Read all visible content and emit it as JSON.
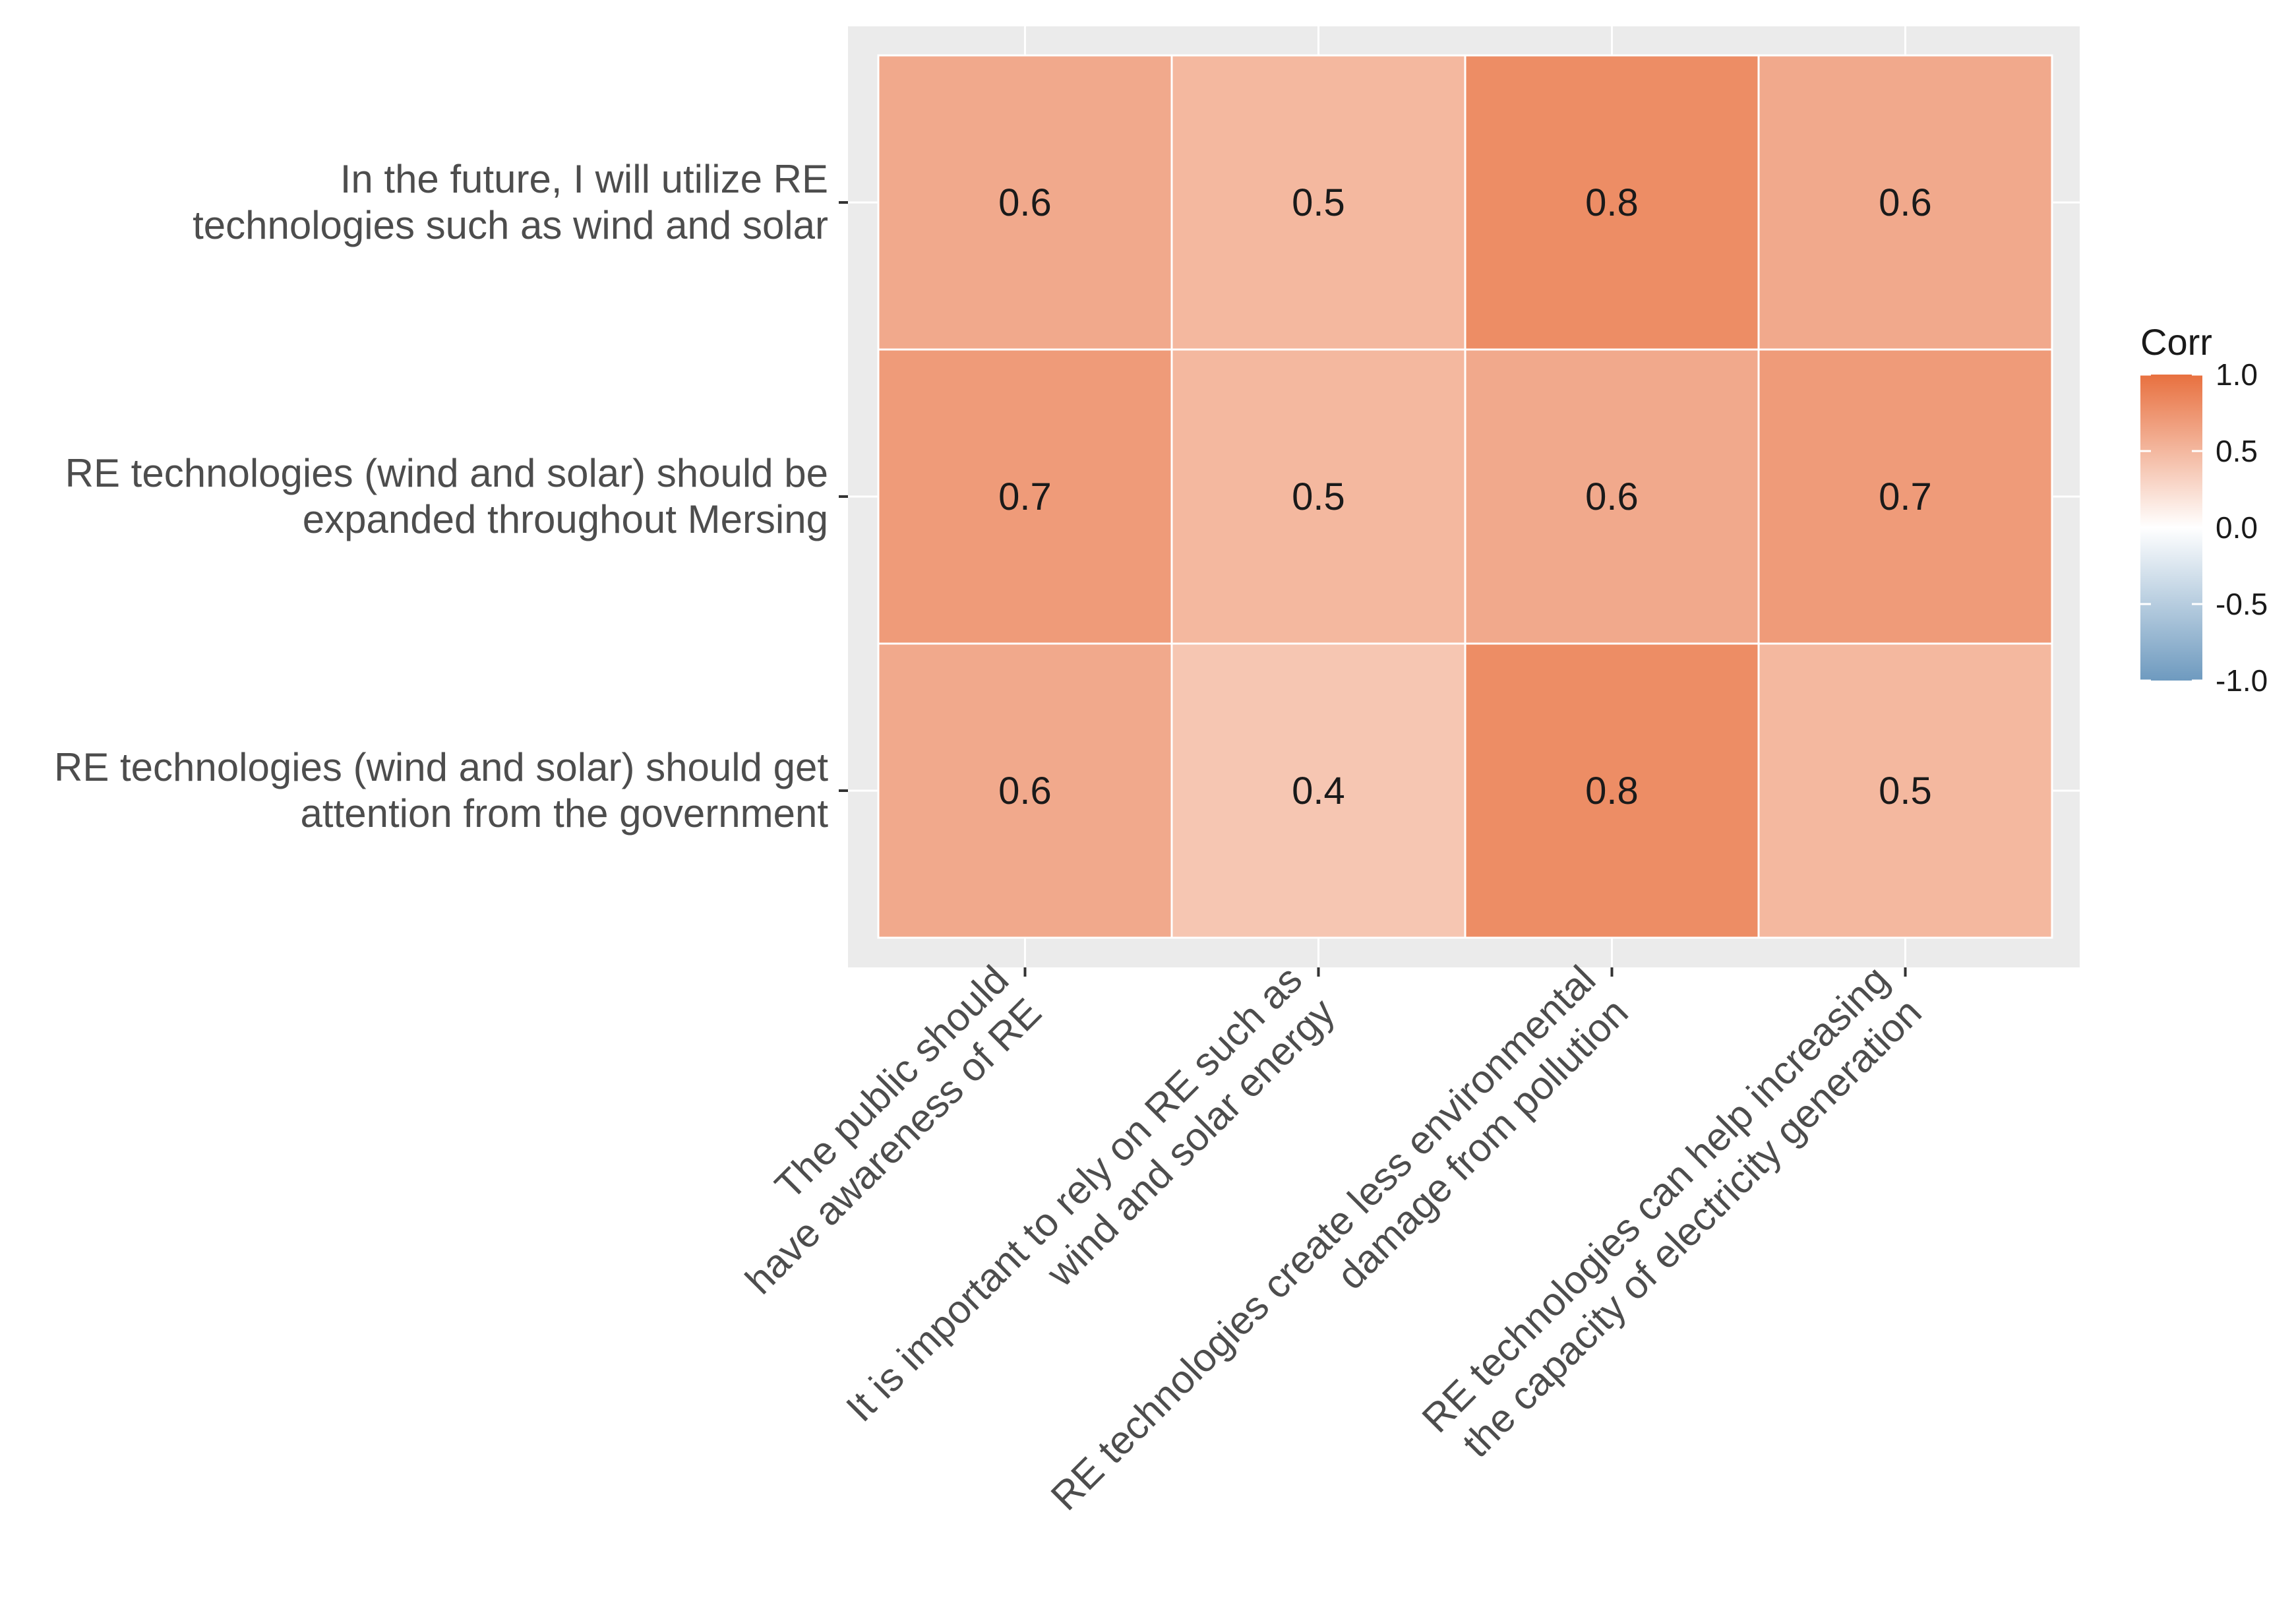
{
  "chart_data": {
    "type": "heatmap",
    "title": "",
    "xlabel": "",
    "ylabel": "",
    "x_categories": [
      [
        "The public should",
        "have awareness of RE"
      ],
      [
        "It is important to rely on RE such as",
        "wind and solar energy"
      ],
      [
        "RE technologies create less environmental",
        "damage from pollution"
      ],
      [
        "RE technologies can help increasing",
        "the capacity of electricity generation"
      ]
    ],
    "y_categories": [
      [
        "In the future, I will utilize RE",
        "technologies such as wind and solar"
      ],
      [
        "RE technologies (wind and solar) should be",
        "expanded throughout Mersing"
      ],
      [
        "RE technologies (wind and solar) should get",
        "attention from the government"
      ]
    ],
    "values": [
      [
        0.6,
        0.5,
        0.8,
        0.6
      ],
      [
        0.7,
        0.5,
        0.6,
        0.7
      ],
      [
        0.6,
        0.4,
        0.8,
        0.5
      ]
    ],
    "cell_labels": [
      [
        "0.6",
        "0.5",
        "0.8",
        "0.6"
      ],
      [
        "0.7",
        "0.5",
        "0.6",
        "0.7"
      ],
      [
        "0.6",
        "0.4",
        "0.8",
        "0.5"
      ]
    ],
    "legend": {
      "title": "Corr",
      "position": "right",
      "range": [
        -1.0,
        1.0
      ],
      "ticks": [
        1.0,
        0.5,
        0.0,
        -0.5,
        -1.0
      ],
      "tick_labels": [
        "1.0",
        "0.5",
        "0.0",
        "-0.5",
        "-1.0"
      ]
    },
    "colors": {
      "high": "#E8703F",
      "mid": "#FFFFFF",
      "low": "#6E9ABF",
      "panel_background": "#EBEBEB",
      "grid": "#FFFFFF"
    }
  }
}
